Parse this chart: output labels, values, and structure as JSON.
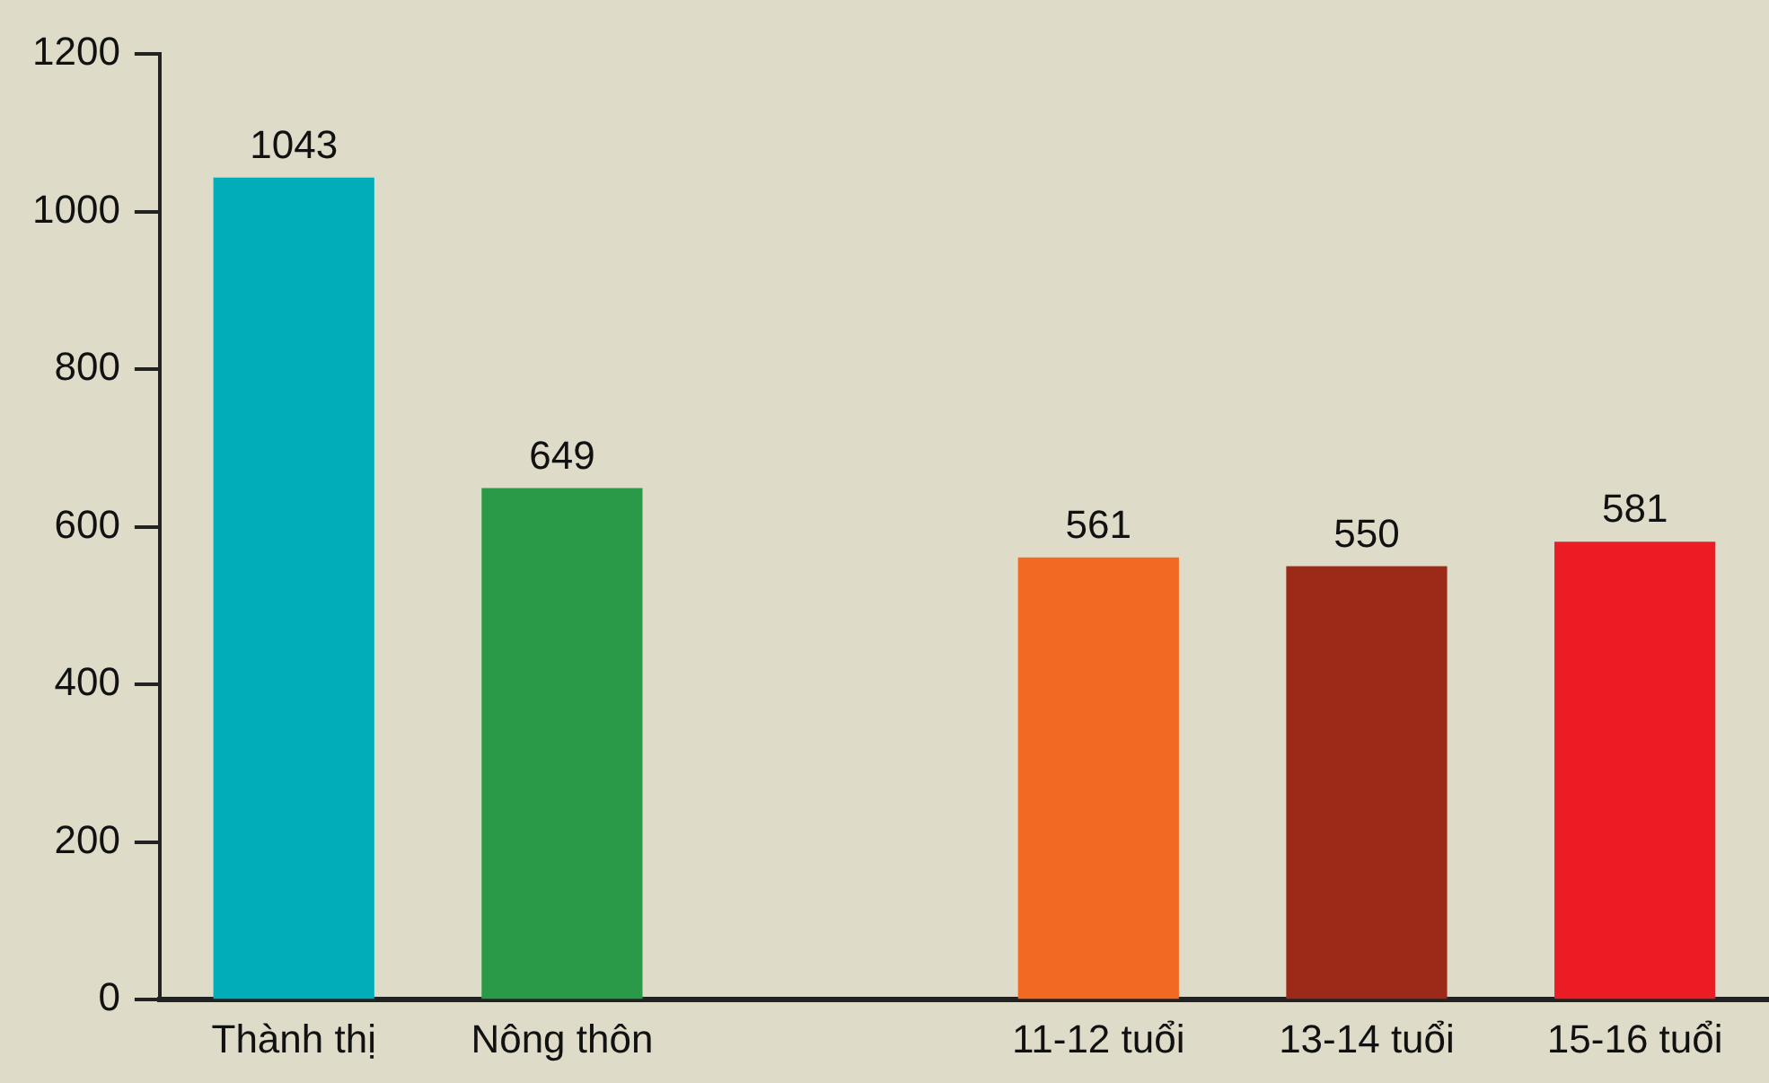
{
  "chart_data": {
    "type": "bar",
    "categories": [
      "Thành thị",
      "Nông thôn",
      null,
      "11-12 tuổi",
      "13-14 tuổi",
      "15-16 tuổi"
    ],
    "values": [
      1043,
      649,
      null,
      561,
      550,
      581
    ],
    "colors": [
      "#00adb9",
      "#2a9a48",
      "#000000",
      "#f26a22",
      "#9c2a18",
      "#ec1c24"
    ],
    "ylim": [
      0,
      1200
    ],
    "yticks": [
      0,
      200,
      400,
      600,
      800,
      1000,
      1200
    ],
    "data_labels": true,
    "grid": false,
    "legend": false
  }
}
